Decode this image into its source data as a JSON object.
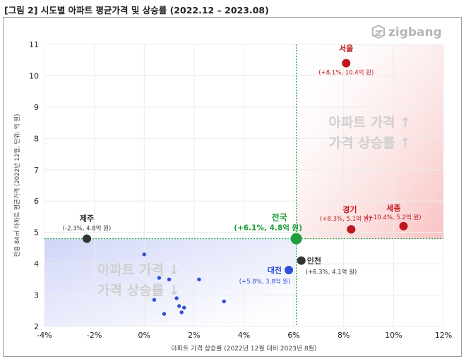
{
  "figure_title": "[그림 2] 시도별 아파트 평균가격 및 상승률 (2022.12 – 2023.08)",
  "brand": {
    "name": "zigbang",
    "logo_icon": "zigbang-logo-icon"
  },
  "colors": {
    "red": "#c0161d",
    "blue": "#2f4ed8",
    "green": "#1f9e3a",
    "dark": "#333333",
    "quadrant_text": "#cfcfcf"
  },
  "quadrant_labels": {
    "upper_right": [
      "아파트 가격 ↑",
      "가격 상승률 ↑"
    ],
    "lower_left": [
      "아파트 가격 ↓",
      "가격 상승률 ↓"
    ]
  },
  "chart_data": {
    "type": "scatter",
    "xlabel": "아파트 가격 상승률 (2022년 12월 대비 2023년 8월)",
    "ylabel": "전용 84㎡ 아파트 평균가격 (2022년 12월, 단위: 억 원)",
    "xlim": [
      -4,
      12
    ],
    "ylim": [
      2,
      11
    ],
    "x_ticks": [
      -4,
      -2,
      0,
      2,
      4,
      6,
      8,
      10,
      12
    ],
    "x_tick_labels": [
      "-4%",
      "-2%",
      "0%",
      "2%",
      "4%",
      "6%",
      "8%",
      "10%",
      "12%"
    ],
    "y_ticks": [
      2,
      3,
      4,
      5,
      6,
      7,
      8,
      9,
      10,
      11
    ],
    "y_tick_labels": [
      "2",
      "3",
      "4",
      "5",
      "6",
      "7",
      "8",
      "9",
      "10",
      "11"
    ],
    "grid": true,
    "reference_lines": {
      "x": 6.1,
      "y": 4.8
    },
    "labeled_points": [
      {
        "name": "서울",
        "x": 8.1,
        "y": 10.4,
        "sublabel": "(+8.1%, 10.4억 원)",
        "group": "red"
      },
      {
        "name": "세종",
        "x": 10.4,
        "y": 5.2,
        "sublabel": "(+10.4%, 5.2억 원)",
        "group": "red"
      },
      {
        "name": "경기",
        "x": 8.3,
        "y": 5.1,
        "sublabel": "(+8.3%, 5.1억 원)",
        "group": "red"
      },
      {
        "name": "전국",
        "x": 6.1,
        "y": 4.8,
        "sublabel": "(+6.1%, 4.8억 원)",
        "group": "green"
      },
      {
        "name": "제주",
        "x": -2.3,
        "y": 4.8,
        "sublabel": "(-2.3%, 4.8억 원)",
        "group": "dark"
      },
      {
        "name": "인천",
        "x": 6.3,
        "y": 4.1,
        "sublabel": "(+6.3%, 4.1억 원)",
        "group": "dark"
      },
      {
        "name": "대전",
        "x": 5.8,
        "y": 3.8,
        "sublabel": "(+5.8%, 3.8억 원)",
        "group": "blue"
      }
    ],
    "other_points": [
      {
        "x": 0.0,
        "y": 4.3
      },
      {
        "x": 0.6,
        "y": 3.55
      },
      {
        "x": 1.0,
        "y": 3.5
      },
      {
        "x": 2.2,
        "y": 3.5
      },
      {
        "x": 1.3,
        "y": 2.9
      },
      {
        "x": 0.4,
        "y": 2.85
      },
      {
        "x": 3.2,
        "y": 2.8
      },
      {
        "x": 1.4,
        "y": 2.65
      },
      {
        "x": 1.6,
        "y": 2.6
      },
      {
        "x": 1.5,
        "y": 2.45
      },
      {
        "x": 0.8,
        "y": 2.4
      }
    ]
  }
}
